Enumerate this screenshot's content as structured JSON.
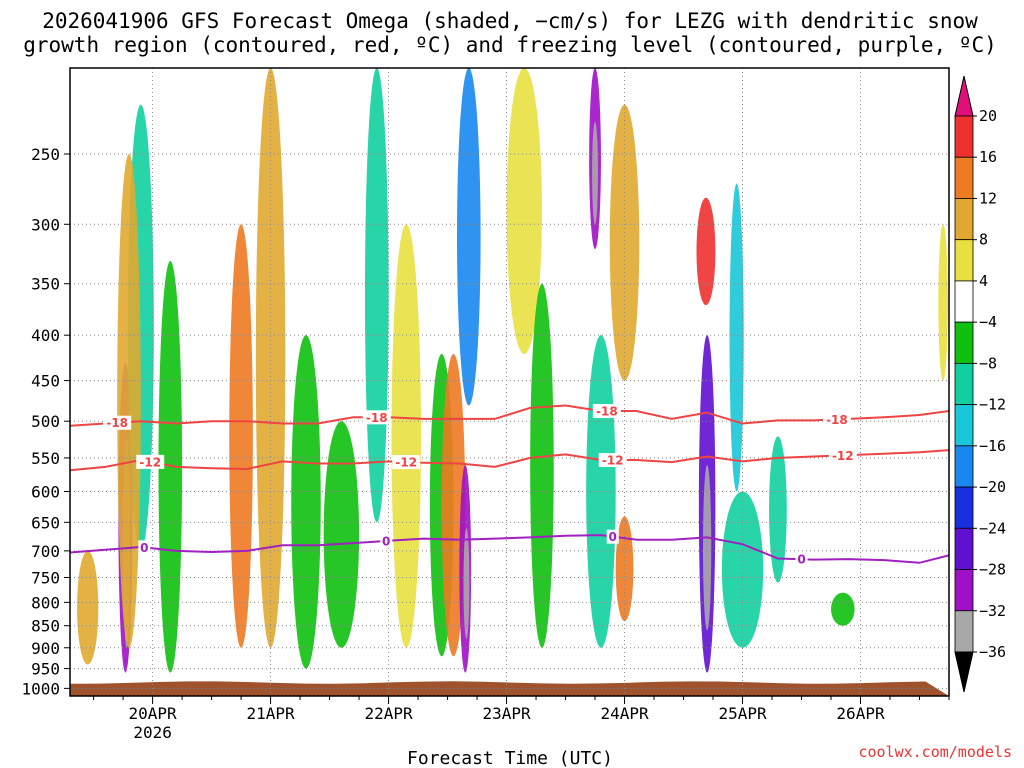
{
  "title": {
    "line1": "2026041906 GFS Forecast Omega (shaded, −cm/s) for LEZG with dendritic snow",
    "line2": "growth region (contoured, red, ºC) and freezing level (contoured, purple, ºC)"
  },
  "xlabel": "Forecast Time (UTC)",
  "credit": "coolwx.com/models",
  "chart_data": {
    "type": "heatmap",
    "title": "2026041906 GFS Forecast Omega (shaded, −cm/s) for LEZG with dendritic snow growth region (contoured, red, ºC) and freezing level (contoured, purple, ºC)",
    "xlabel": "Forecast Time (UTC)",
    "ylabel": "",
    "x_ticks": [
      "20APR",
      "21APR",
      "22APR",
      "23APR",
      "24APR",
      "25APR",
      "26APR"
    ],
    "x_tick_sublabel": "2026",
    "x_range_days": [
      19.3,
      26.75
    ],
    "y_ticks": [
      250,
      300,
      350,
      400,
      450,
      500,
      550,
      600,
      650,
      700,
      750,
      800,
      850,
      900,
      950,
      1000
    ],
    "y_range_hpa": [
      200,
      1020
    ],
    "y_scale": "log-pressure",
    "grid": true,
    "colorbar": {
      "levels": [
        20,
        16,
        12,
        8,
        4,
        -4,
        -8,
        -12,
        -16,
        -20,
        -24,
        -28,
        -32,
        -36
      ],
      "colors": [
        "#e0107a",
        "#f03030",
        "#ee7a22",
        "#e0a830",
        "#e8e040",
        "#ffffff",
        "#10c010",
        "#10d0a0",
        "#18c8d8",
        "#1888f0",
        "#1830e0",
        "#6010d0",
        "#a010c8",
        "#a8a8a8",
        "#000000"
      ]
    },
    "ground_color": "#a0522d",
    "contours": [
      {
        "label": "-18",
        "color": "#ee4444",
        "x": [
          19.3,
          19.6,
          19.9,
          20.2,
          20.5,
          20.8,
          21.1,
          21.4,
          21.7,
          22.0,
          22.3,
          22.6,
          22.9,
          23.2,
          23.5,
          23.8,
          24.1,
          24.4,
          24.7,
          25.0,
          25.3,
          25.6,
          25.9,
          26.2,
          26.5,
          26.75
        ],
        "p": [
          506,
          503,
          500,
          503,
          500,
          500,
          503,
          503,
          495,
          495,
          497,
          497,
          497,
          483,
          480,
          487,
          487,
          497,
          489,
          503,
          499,
          499,
          497,
          495,
          492,
          487
        ]
      },
      {
        "label": "-12",
        "color": "#ee4444",
        "x": [
          19.3,
          19.6,
          19.9,
          20.2,
          20.5,
          20.8,
          21.1,
          21.4,
          21.7,
          22.0,
          22.3,
          22.6,
          22.9,
          23.2,
          23.5,
          23.8,
          24.1,
          24.4,
          24.7,
          25.0,
          25.3,
          25.6,
          25.9,
          26.2,
          26.5,
          26.75
        ],
        "p": [
          568,
          563,
          553,
          563,
          565,
          566,
          555,
          558,
          558,
          555,
          557,
          558,
          563,
          550,
          545,
          553,
          553,
          556,
          548,
          555,
          550,
          548,
          546,
          544,
          542,
          539
        ]
      },
      {
        "label": "0",
        "color": "#a020c0",
        "x": [
          19.3,
          19.6,
          19.9,
          20.2,
          20.5,
          20.8,
          21.1,
          21.4,
          21.7,
          22.0,
          22.3,
          22.6,
          22.9,
          23.2,
          23.5,
          23.8,
          24.1,
          24.4,
          24.7,
          25.0,
          25.3,
          25.6,
          25.9,
          26.2,
          26.5,
          26.75
        ],
        "p": [
          703,
          698,
          693,
          700,
          702,
          700,
          690,
          690,
          686,
          682,
          678,
          680,
          678,
          676,
          673,
          672,
          680,
          680,
          676,
          688,
          714,
          716,
          715,
          717,
          722,
          708
        ]
      }
    ],
    "contour_labels": [
      {
        "text": "-18",
        "x": 19.7
      },
      {
        "text": "-18",
        "x": 21.9
      },
      {
        "text": "-18",
        "x": 23.85
      },
      {
        "text": "-18",
        "x": 25.8
      },
      {
        "text": "-12",
        "x": 19.98
      },
      {
        "text": "-12",
        "x": 22.15
      },
      {
        "text": "-12",
        "x": 23.9
      },
      {
        "text": "-12",
        "x": 25.85
      },
      {
        "text": "0",
        "x": 19.93
      },
      {
        "text": "0",
        "x": 21.98
      },
      {
        "text": "0",
        "x": 23.9
      },
      {
        "text": "0",
        "x": 25.5
      }
    ],
    "shaded_features": [
      {
        "x": 19.77,
        "w": 0.12,
        "p": [
          430,
          960
        ],
        "v": -30
      },
      {
        "x": 19.78,
        "w": 0.06,
        "p": [
          520,
          900
        ],
        "v": -36
      },
      {
        "x": 19.9,
        "w": 0.22,
        "p": [
          220,
          700
        ],
        "v": -12
      },
      {
        "x": 19.8,
        "w": 0.2,
        "p": [
          250,
          900
        ],
        "v": 8
      },
      {
        "x": 20.15,
        "w": 0.2,
        "p": [
          330,
          960
        ],
        "v": -8
      },
      {
        "x": 19.45,
        "w": 0.18,
        "p": [
          700,
          940
        ],
        "v": 8
      },
      {
        "x": 20.75,
        "w": 0.2,
        "p": [
          300,
          900
        ],
        "v": 14
      },
      {
        "x": 21.0,
        "w": 0.25,
        "p": [
          200,
          900
        ],
        "v": 10
      },
      {
        "x": 21.3,
        "w": 0.25,
        "p": [
          400,
          950
        ],
        "v": -8
      },
      {
        "x": 21.6,
        "w": 0.3,
        "p": [
          500,
          900
        ],
        "v": -8
      },
      {
        "x": 21.9,
        "w": 0.2,
        "p": [
          200,
          650
        ],
        "v": -10
      },
      {
        "x": 22.15,
        "w": 0.25,
        "p": [
          300,
          900
        ],
        "v": 6
      },
      {
        "x": 22.45,
        "w": 0.2,
        "p": [
          420,
          920
        ],
        "v": -8
      },
      {
        "x": 22.55,
        "w": 0.2,
        "p": [
          420,
          920
        ],
        "v": 12
      },
      {
        "x": 22.65,
        "w": 0.1,
        "p": [
          560,
          960
        ],
        "v": -30
      },
      {
        "x": 22.66,
        "w": 0.05,
        "p": [
          660,
          880
        ],
        "v": -36
      },
      {
        "x": 22.68,
        "w": 0.2,
        "p": [
          200,
          480
        ],
        "v": -18
      },
      {
        "x": 23.15,
        "w": 0.3,
        "p": [
          200,
          420
        ],
        "v": 6
      },
      {
        "x": 23.3,
        "w": 0.2,
        "p": [
          350,
          900
        ],
        "v": -8
      },
      {
        "x": 23.75,
        "w": 0.1,
        "p": [
          200,
          320
        ],
        "v": -30
      },
      {
        "x": 23.75,
        "w": 0.05,
        "p": [
          230,
          300
        ],
        "v": -36
      },
      {
        "x": 23.8,
        "w": 0.25,
        "p": [
          400,
          900
        ],
        "v": -10
      },
      {
        "x": 24.0,
        "w": 0.25,
        "p": [
          220,
          450
        ],
        "v": 8
      },
      {
        "x": 24.0,
        "w": 0.15,
        "p": [
          640,
          840
        ],
        "v": 14
      },
      {
        "x": 24.7,
        "w": 0.14,
        "p": [
          400,
          960
        ],
        "v": -26
      },
      {
        "x": 24.7,
        "w": 0.07,
        "p": [
          560,
          860
        ],
        "v": -36
      },
      {
        "x": 24.69,
        "w": 0.16,
        "p": [
          280,
          370
        ],
        "v": 18
      },
      {
        "x": 24.95,
        "w": 0.12,
        "p": [
          270,
          600
        ],
        "v": -14
      },
      {
        "x": 25.0,
        "w": 0.35,
        "p": [
          600,
          900
        ],
        "v": -10
      },
      {
        "x": 25.3,
        "w": 0.15,
        "p": [
          520,
          760
        ],
        "v": -12
      },
      {
        "x": 25.85,
        "w": 0.2,
        "p": [
          780,
          850
        ],
        "v": -8
      },
      {
        "x": 26.7,
        "w": 0.08,
        "p": [
          300,
          450
        ],
        "v": 6
      }
    ]
  }
}
